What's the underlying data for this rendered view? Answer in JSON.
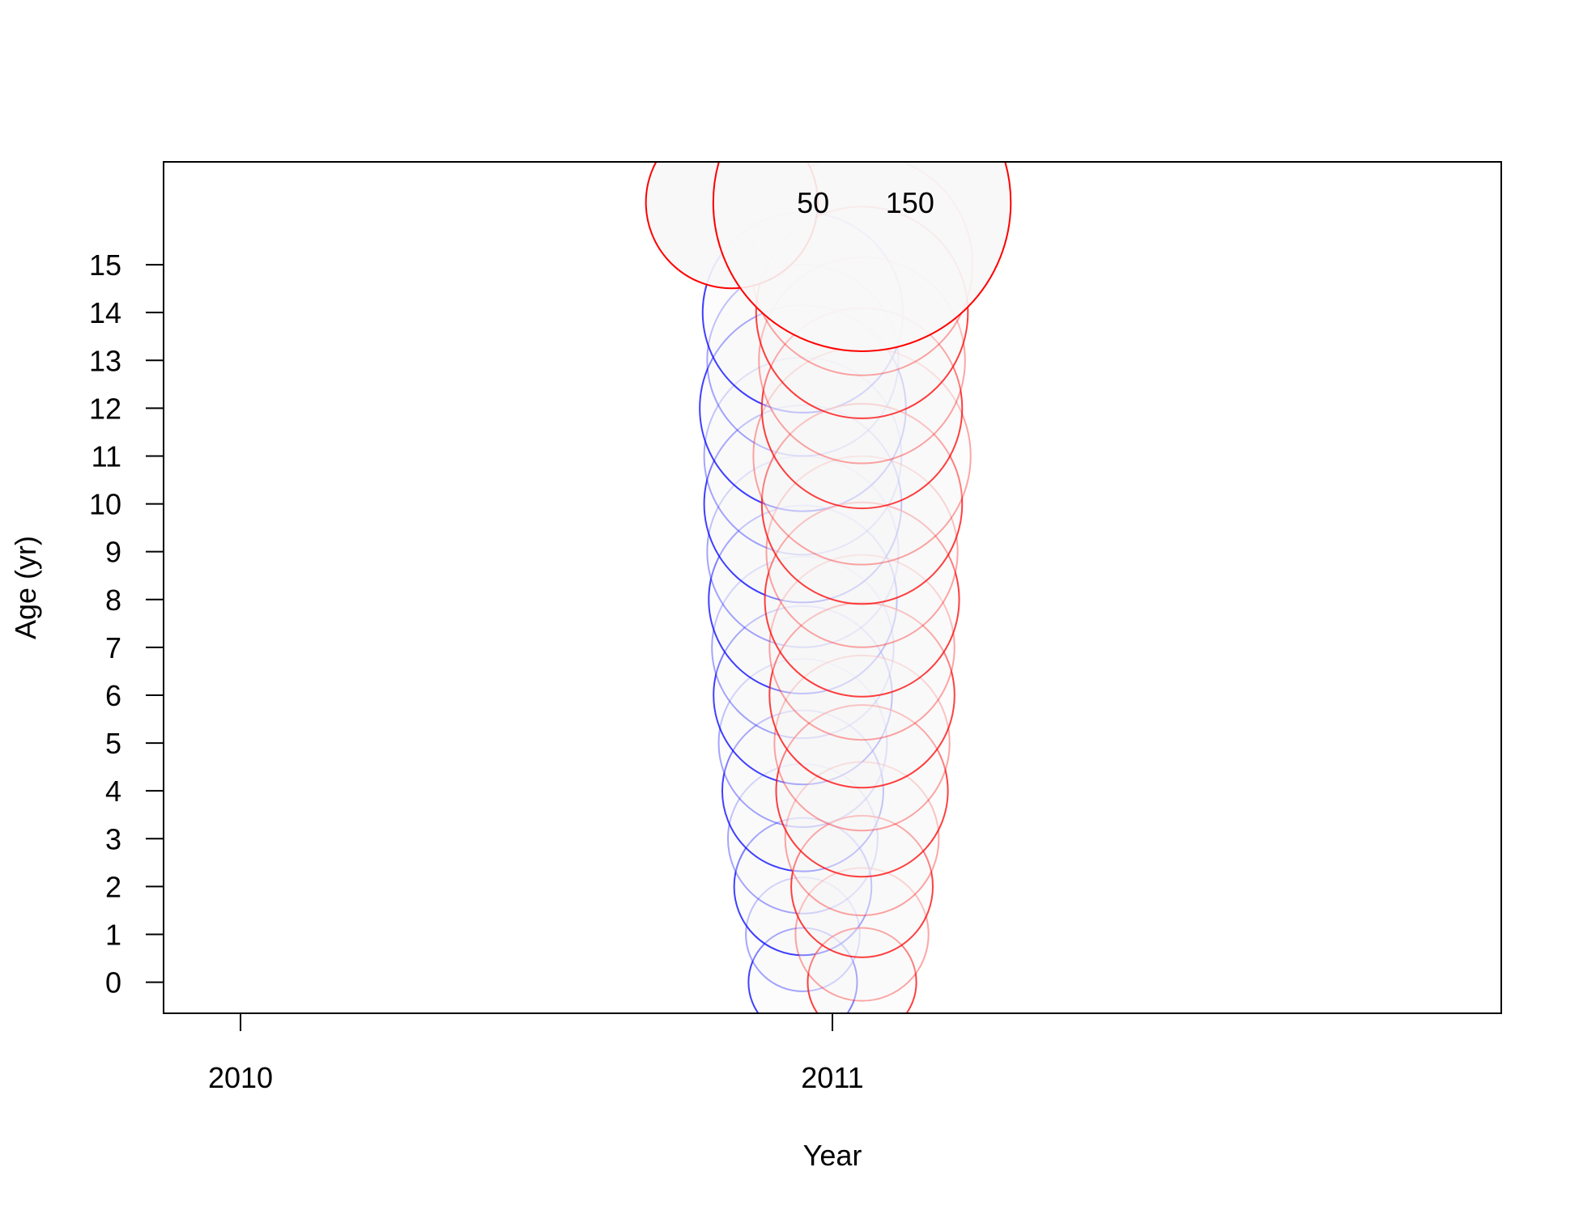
{
  "chart_data": {
    "type": "scatter",
    "subtype": "bubble",
    "title": "",
    "xlabel": "Year",
    "ylabel": "Age (yr)",
    "xlim": [
      2009.87,
      2012.13
    ],
    "ylim": [
      -0.65,
      17.15
    ],
    "x_ticks": [
      2010,
      2011
    ],
    "y_ticks": [
      0,
      1,
      2,
      3,
      4,
      5,
      6,
      7,
      8,
      9,
      10,
      11,
      12,
      13,
      14,
      15
    ],
    "grid": false,
    "legend": {
      "position": "top",
      "entries": [
        {
          "label": "50",
          "value": 50
        },
        {
          "label": "150",
          "value": 150
        }
      ]
    },
    "series": [
      {
        "color": "#0000ff",
        "x": 2010.95,
        "points": [
          {
            "age": 0,
            "value": 20
          },
          {
            "age": 1,
            "value": 22
          },
          {
            "age": 2,
            "value": 32
          },
          {
            "age": 3,
            "value": 38
          },
          {
            "age": 4,
            "value": 44
          },
          {
            "age": 5,
            "value": 48
          },
          {
            "age": 6,
            "value": 54
          },
          {
            "age": 7,
            "value": 56
          },
          {
            "age": 8,
            "value": 60
          },
          {
            "age": 9,
            "value": 62
          },
          {
            "age": 10,
            "value": 66
          },
          {
            "age": 11,
            "value": 66
          },
          {
            "age": 12,
            "value": 72
          },
          {
            "age": 13,
            "value": 62
          },
          {
            "age": 14,
            "value": 68
          }
        ]
      },
      {
        "color": "#ff0000",
        "x": 2011.05,
        "points": [
          {
            "age": 0,
            "value": 20
          },
          {
            "age": 1,
            "value": 30
          },
          {
            "age": 2,
            "value": 34
          },
          {
            "age": 3,
            "value": 40
          },
          {
            "age": 4,
            "value": 50
          },
          {
            "age": 5,
            "value": 52
          },
          {
            "age": 6,
            "value": 58
          },
          {
            "age": 7,
            "value": 58
          },
          {
            "age": 8,
            "value": 64
          },
          {
            "age": 9,
            "value": 62
          },
          {
            "age": 10,
            "value": 68
          },
          {
            "age": 11,
            "value": 80
          },
          {
            "age": 12,
            "value": 68
          },
          {
            "age": 13,
            "value": 72
          },
          {
            "age": 14,
            "value": 76
          },
          {
            "age": 15,
            "value": 83
          }
        ]
      }
    ],
    "colors": {
      "fill": "#f7f7f7",
      "blue": "#0000ff",
      "red": "#ff0000",
      "axis": "#000000"
    }
  }
}
